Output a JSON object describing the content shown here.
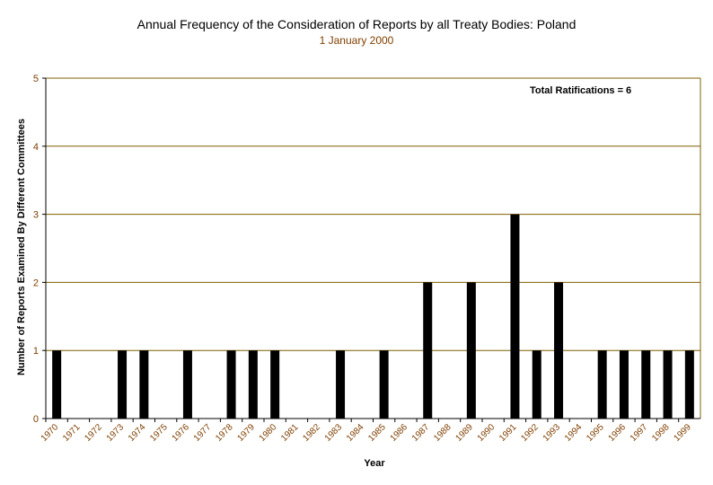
{
  "colors": {
    "bar": "#000000",
    "grid": "#7f6000",
    "tick_label": "#7f3f00",
    "subtitle": "#7f3f00",
    "axis": "#000000",
    "background": "#ffffff"
  },
  "chart_data": {
    "type": "bar",
    "title": "Annual Frequency of the Consideration of Reports by all Treaty Bodies: Poland",
    "subtitle": "1 January 2000",
    "xlabel": "Year",
    "ylabel": "Number of Reports Examined By Different Committees",
    "annotation": "Total Ratifications = 6",
    "ylim": [
      0,
      5
    ],
    "yticks": [
      0,
      1,
      2,
      3,
      4,
      5
    ],
    "grid": true,
    "legend": "none",
    "categories": [
      "1970",
      "1971",
      "1972",
      "1973",
      "1974",
      "1975",
      "1976",
      "1977",
      "1978",
      "1979",
      "1980",
      "1981",
      "1982",
      "1983",
      "1984",
      "1985",
      "1986",
      "1987",
      "1988",
      "1989",
      "1990",
      "1991",
      "1992",
      "1993",
      "1994",
      "1995",
      "1996",
      "1997",
      "1998",
      "1999"
    ],
    "values": [
      1,
      0,
      0,
      1,
      1,
      0,
      1,
      0,
      1,
      1,
      1,
      0,
      0,
      1,
      0,
      1,
      0,
      2,
      0,
      2,
      0,
      3,
      1,
      2,
      0,
      1,
      1,
      1,
      1,
      1
    ]
  }
}
